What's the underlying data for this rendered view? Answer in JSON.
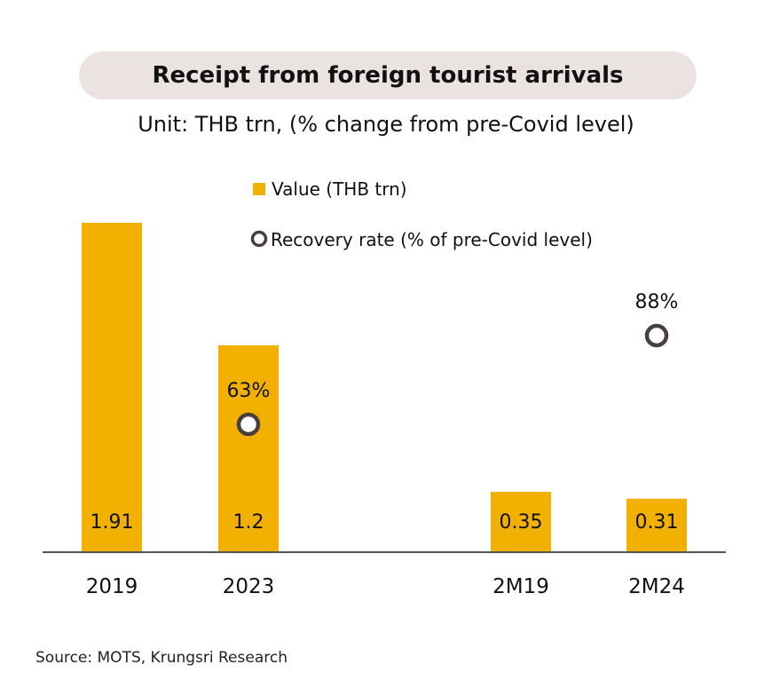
{
  "chart_data": {
    "type": "bar",
    "title": "Receipt from foreign tourist arrivals",
    "subtitle": "Unit: THB trn, (% change from pre-Covid level)",
    "categories": [
      "2019",
      "2023",
      "2M19",
      "2M24"
    ],
    "series": [
      {
        "name": "Value (THB trn)",
        "type": "bar",
        "values": [
          1.91,
          1.2,
          0.35,
          0.31
        ],
        "value_labels": [
          "1.91",
          "1.2",
          "0.35",
          "0.31"
        ],
        "color": "#f2b000"
      },
      {
        "name": "Recovery rate (% of pre-Covid level)",
        "type": "scatter",
        "values": [
          null,
          63,
          null,
          88
        ],
        "value_labels": [
          "",
          "63%",
          "",
          "88%"
        ],
        "color": "#4a3f3f"
      }
    ],
    "legend_position": "top",
    "grid": false
  },
  "source": "Source:  MOTS, Krungsri Research"
}
